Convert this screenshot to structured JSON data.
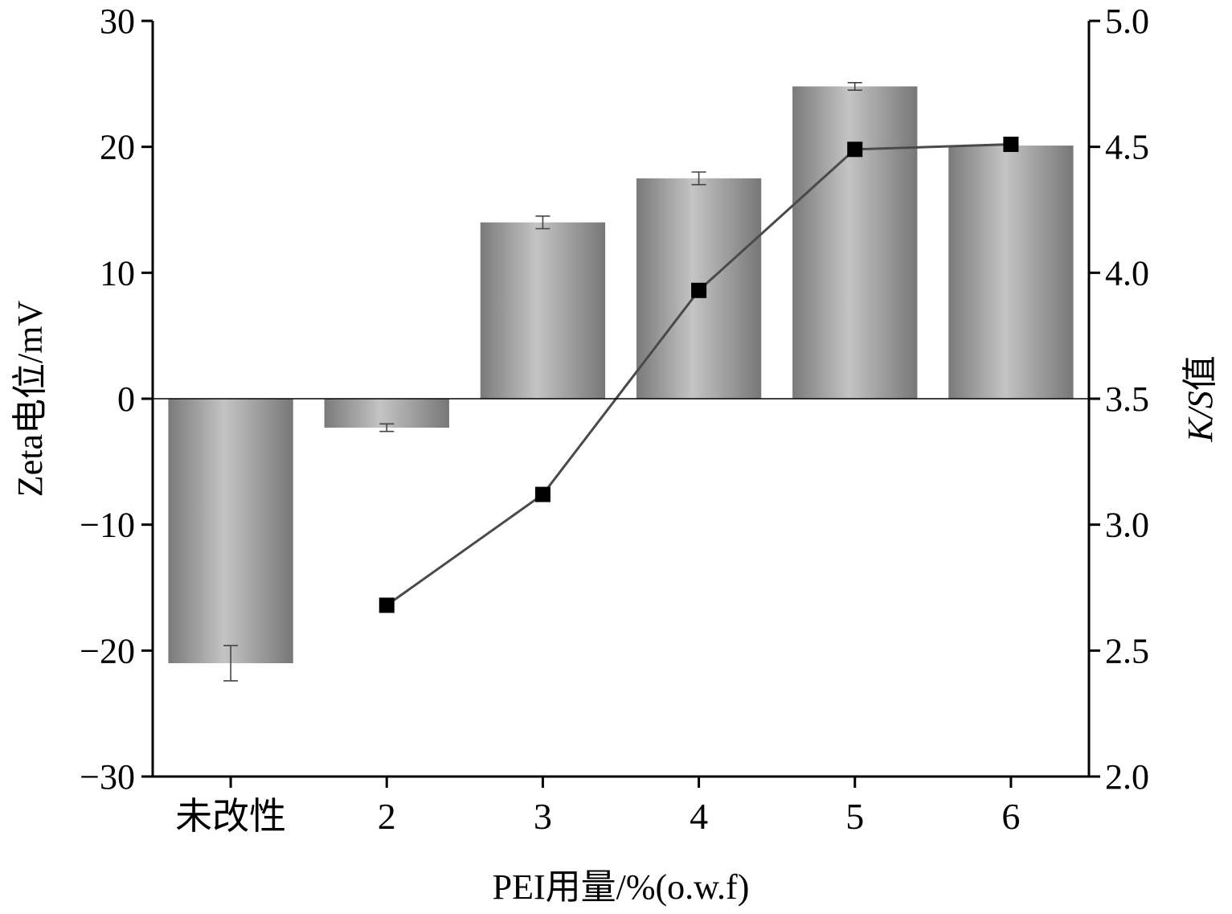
{
  "chart_data": {
    "type": "bar+line",
    "xlabel": "PEI用量/%(o.w.f)",
    "ylabel_left": "Zeta电位/mV",
    "ylabel_right_italic": "K/S",
    "ylabel_right_suffix": "值",
    "categories": [
      "未改性",
      "2",
      "3",
      "4",
      "5",
      "6"
    ],
    "left_axis": {
      "ylim": [
        -30,
        30
      ],
      "ticks": [
        30,
        20,
        10,
        0,
        -10,
        -20,
        -30
      ],
      "tick_labels": [
        "30",
        "20",
        "10",
        "0",
        "−10",
        "−20",
        "−30"
      ]
    },
    "right_axis": {
      "ylim": [
        2.0,
        5.0
      ],
      "ticks": [
        5.0,
        4.5,
        4.0,
        3.5,
        3.0,
        2.5,
        2.0
      ],
      "tick_labels": [
        "5.0",
        "4.5",
        "4.0",
        "3.5",
        "3.0",
        "2.5",
        "2.0"
      ]
    },
    "series": [
      {
        "type": "bar",
        "axis": "left",
        "values": [
          -21.0,
          -2.3,
          14.0,
          17.5,
          24.8,
          20.1
        ],
        "errors": [
          1.4,
          0.3,
          0.5,
          0.5,
          0.3,
          0.0
        ]
      },
      {
        "type": "line",
        "axis": "right",
        "marker": "square",
        "values": [
          null,
          2.68,
          3.12,
          3.93,
          4.49,
          4.51
        ]
      }
    ],
    "grid": false,
    "colors": {
      "bar_edge": "#7a7a7a",
      "bar_mid": "#c4c4c4",
      "line": "#4a4a4a",
      "marker": "#000000"
    }
  }
}
